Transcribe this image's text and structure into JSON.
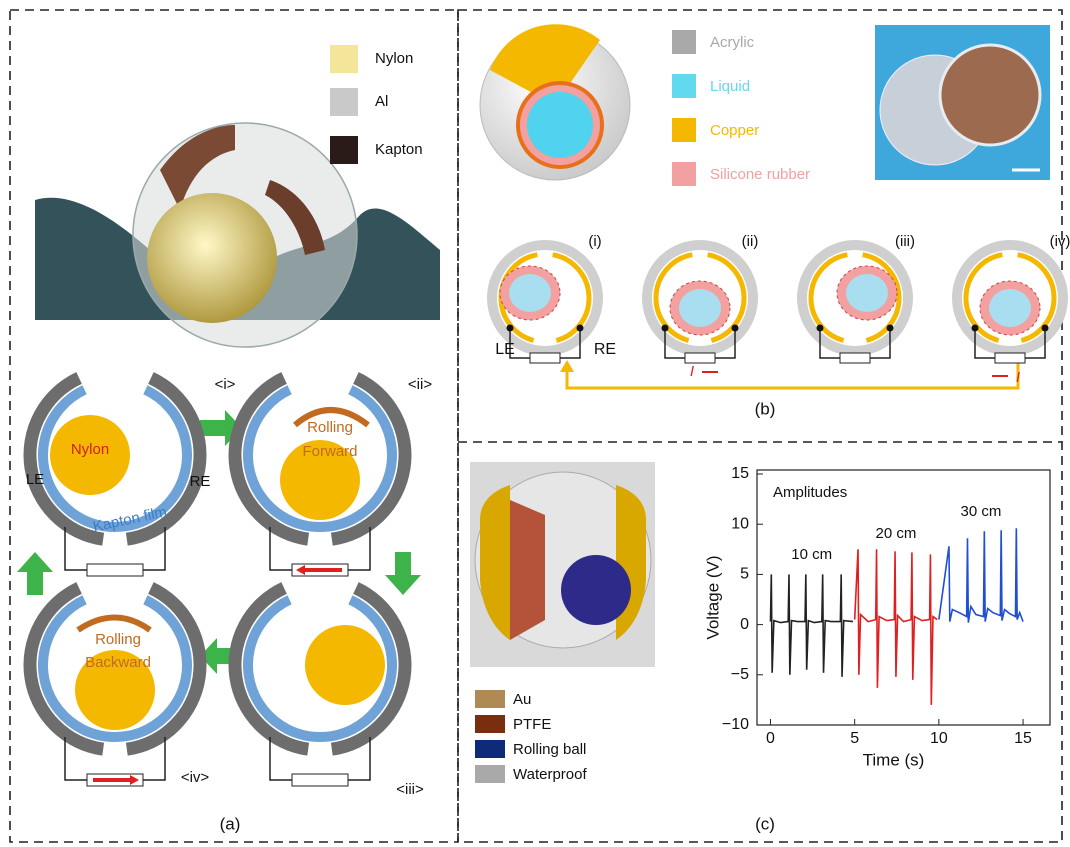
{
  "panel_a": {
    "legend": [
      {
        "label": "Nylon",
        "color": "#f3e69a"
      },
      {
        "label": "Al",
        "color": "#c9c9c9"
      },
      {
        "label": "Kapton",
        "color": "#2a1a18"
      }
    ],
    "stages": [
      "<i>",
      "<ii>",
      "<iii>",
      "<iv>"
    ],
    "ball_label": "Nylon",
    "film_label": "Kapton film",
    "left_electrode": "LE",
    "right_electrode": "RE",
    "forward": [
      "Rolling",
      "Forward"
    ],
    "backward": [
      "Rolling",
      "Backward"
    ],
    "caption": "(a)"
  },
  "panel_b": {
    "legend": [
      {
        "label": "Acrylic",
        "color": "#a9a9a9"
      },
      {
        "label": "Liquid",
        "color": "#63d9ef"
      },
      {
        "label": "Copper",
        "color": "#f5b800"
      },
      {
        "label": "Silicone rubber",
        "color": "#f2a0a0"
      }
    ],
    "stages": [
      "(i)",
      "(ii)",
      "(iii)",
      "(iv)"
    ],
    "left_electrode": "LE",
    "right_electrode": "RE",
    "current": [
      "I",
      "I"
    ],
    "caption": "(b)"
  },
  "panel_c": {
    "legend": [
      {
        "label": "Au",
        "color": "#b08a55"
      },
      {
        "label": "PTFE",
        "color": "#7a2e10"
      },
      {
        "label": "Rolling ball",
        "color": "#102a7a"
      },
      {
        "label": "Waterproof",
        "color": "#a9a9a9"
      }
    ],
    "caption": "(c)"
  },
  "chart_data": {
    "type": "line",
    "title": "Amplitudes",
    "x_label": "Time (s)",
    "y_label": "Voltage (V)",
    "xlim": [
      -0.8,
      16.6
    ],
    "ylim": [
      -10,
      15.4
    ],
    "xticks": [
      0,
      5,
      10,
      15
    ],
    "yticks": [
      {
        "value": -10,
        "label": "−10"
      },
      {
        "value": -5,
        "label": "−5"
      },
      0,
      5,
      10,
      15
    ],
    "series": [
      {
        "name": "10 cm",
        "color": "#222222",
        "x": [
          0,
          0.05,
          0.1,
          0.2,
          0.6,
          1.05,
          1.1,
          1.15,
          1.25,
          1.6,
          2.05,
          2.1,
          2.15,
          2.25,
          2.6,
          3.05,
          3.1,
          3.15,
          3.25,
          3.6,
          4.15,
          4.2,
          4.25,
          4.35,
          4.9
        ],
        "values": [
          0.3,
          5.0,
          -4.8,
          0.4,
          0.2,
          0.3,
          5.0,
          -5.0,
          0.4,
          0.3,
          0.3,
          5.0,
          -4.5,
          0.4,
          0.2,
          0.3,
          5.0,
          -4.8,
          0.4,
          0.3,
          0.3,
          5.0,
          -5.2,
          0.4,
          0.3
        ]
      },
      {
        "name": "20 cm",
        "color": "#e02020",
        "x": [
          5.0,
          5.2,
          5.25,
          5.35,
          5.8,
          6.25,
          6.3,
          6.35,
          6.45,
          6.9,
          7.35,
          7.4,
          7.45,
          7.55,
          7.9,
          8.35,
          8.4,
          8.45,
          8.55,
          9.0,
          9.45,
          9.5,
          9.55,
          9.65,
          9.9
        ],
        "values": [
          0.5,
          7.5,
          -5.0,
          1.0,
          0.3,
          0.5,
          7.5,
          -6.3,
          0.8,
          0.4,
          0.5,
          7.3,
          -5.2,
          0.9,
          0.3,
          0.5,
          7.2,
          -5.5,
          0.8,
          0.4,
          0.5,
          7.0,
          -8.0,
          0.8,
          0.5
        ]
      },
      {
        "name": "30 cm",
        "color": "#2050d0",
        "x": [
          10.0,
          10.6,
          10.65,
          10.8,
          11.2,
          11.65,
          11.7,
          11.75,
          11.9,
          12.2,
          12.65,
          12.7,
          12.75,
          12.9,
          13.2,
          13.65,
          13.7,
          13.75,
          13.9,
          14.2,
          14.55,
          14.6,
          14.65,
          14.8,
          15.0
        ],
        "values": [
          0.5,
          7.8,
          0.3,
          1.5,
          1.2,
          0.8,
          8.6,
          0.2,
          1.8,
          1.0,
          0.8,
          9.3,
          0.3,
          1.6,
          1.2,
          0.9,
          9.4,
          0.4,
          1.5,
          1.1,
          0.8,
          9.6,
          0.5,
          1.2,
          0.3
        ]
      }
    ]
  }
}
